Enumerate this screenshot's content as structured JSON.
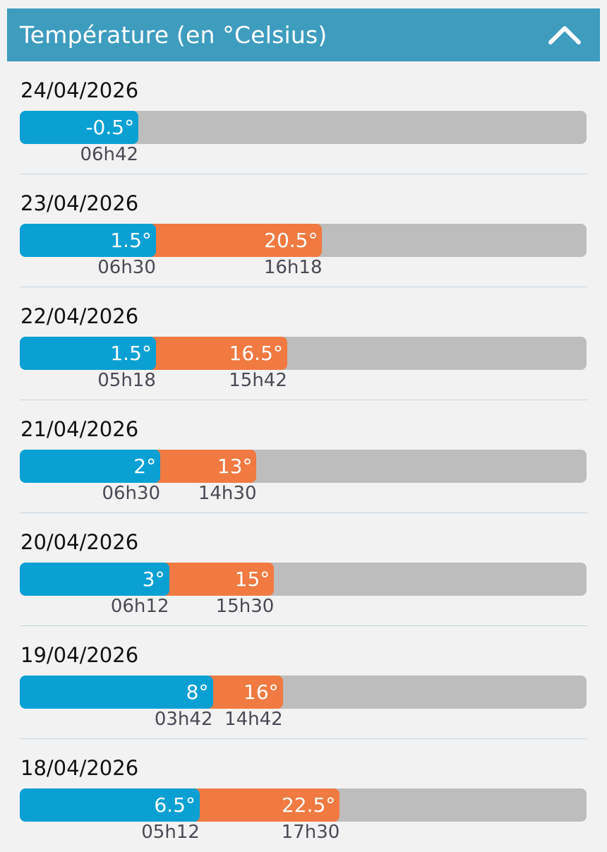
{
  "header": {
    "title": "Température (en °Celsius)",
    "collapse_icon": "chevron-up-icon"
  },
  "colors": {
    "header": "#3e9cbf",
    "min": "#0aa0d4",
    "max": "#f07a42",
    "track": "#bdbdbd"
  },
  "days": [
    {
      "date": "24/04/2026",
      "min": {
        "value": -0.5,
        "label": "-0.5°",
        "time": "06h42"
      },
      "max": null
    },
    {
      "date": "23/04/2026",
      "min": {
        "value": 1.5,
        "label": "1.5°",
        "time": "06h30"
      },
      "max": {
        "value": 20.5,
        "label": "20.5°",
        "time": "16h18"
      }
    },
    {
      "date": "22/04/2026",
      "min": {
        "value": 1.5,
        "label": "1.5°",
        "time": "05h18"
      },
      "max": {
        "value": 16.5,
        "label": "16.5°",
        "time": "15h42"
      }
    },
    {
      "date": "21/04/2026",
      "min": {
        "value": 2,
        "label": "2°",
        "time": "06h30"
      },
      "max": {
        "value": 13,
        "label": "13°",
        "time": "14h30"
      }
    },
    {
      "date": "20/04/2026",
      "min": {
        "value": 3,
        "label": "3°",
        "time": "06h12"
      },
      "max": {
        "value": 15,
        "label": "15°",
        "time": "15h30"
      }
    },
    {
      "date": "19/04/2026",
      "min": {
        "value": 8,
        "label": "8°",
        "time": "03h42"
      },
      "max": {
        "value": 16,
        "label": "16°",
        "time": "14h42"
      }
    },
    {
      "date": "18/04/2026",
      "min": {
        "value": 6.5,
        "label": "6.5°",
        "time": "05h12"
      },
      "max": {
        "value": 22.5,
        "label": "22.5°",
        "time": "17h30"
      }
    }
  ]
}
